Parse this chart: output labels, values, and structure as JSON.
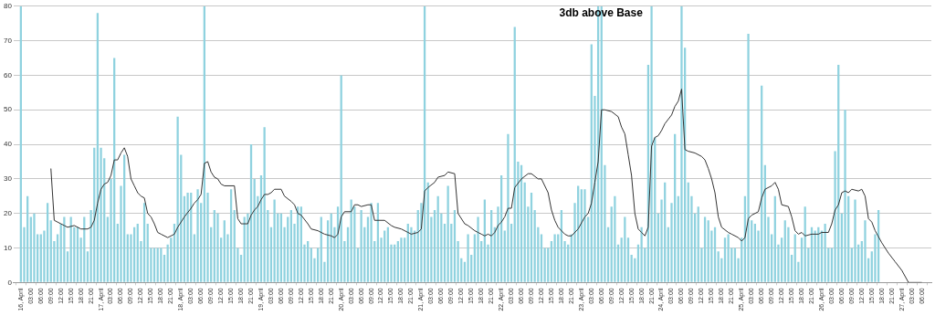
{
  "chart_data": {
    "type": "bar",
    "annotations": [
      "3db above Base"
    ],
    "x": [
      "--04-16T00:00",
      "--04-16T01:00",
      "--04-16T02:00",
      "--04-16T03:00",
      "--04-16T04:00",
      "--04-16T05:00",
      "--04-16T06:00",
      "--04-16T07:00",
      "--04-16T08:00",
      "--04-16T09:00",
      "--04-16T10:00",
      "--04-16T11:00",
      "--04-16T12:00",
      "--04-16T13:00",
      "--04-16T14:00",
      "--04-16T15:00",
      "--04-16T16:00",
      "--04-16T17:00",
      "--04-16T18:00",
      "--04-16T19:00",
      "--04-16T20:00",
      "--04-16T21:00",
      "--04-16T22:00",
      "--04-16T23:00",
      "--04-17T00:00",
      "--04-17T01:00",
      "--04-17T02:00",
      "--04-17T03:00",
      "--04-17T04:00",
      "--04-17T05:00",
      "--04-17T06:00",
      "--04-17T07:00",
      "--04-17T08:00",
      "--04-17T09:00",
      "--04-17T10:00",
      "--04-17T11:00",
      "--04-17T12:00",
      "--04-17T13:00",
      "--04-17T14:00",
      "--04-17T15:00",
      "--04-17T16:00",
      "--04-17T17:00",
      "--04-17T18:00",
      "--04-17T19:00",
      "--04-17T20:00",
      "--04-17T21:00",
      "--04-17T22:00",
      "--04-17T23:00",
      "--04-18T00:00",
      "--04-18T01:00",
      "--04-18T02:00",
      "--04-18T03:00",
      "--04-18T04:00",
      "--04-18T05:00",
      "--04-18T06:00",
      "--04-18T07:00",
      "--04-18T08:00",
      "--04-18T09:00",
      "--04-18T10:00",
      "--04-18T11:00",
      "--04-18T12:00",
      "--04-18T13:00",
      "--04-18T14:00",
      "--04-18T15:00",
      "--04-18T16:00",
      "--04-18T17:00",
      "--04-18T18:00",
      "--04-18T19:00",
      "--04-18T20:00",
      "--04-18T21:00",
      "--04-18T22:00",
      "--04-18T23:00",
      "--04-19T00:00",
      "--04-19T01:00",
      "--04-19T02:00",
      "--04-19T03:00",
      "--04-19T04:00",
      "--04-19T05:00",
      "--04-19T06:00",
      "--04-19T07:00",
      "--04-19T08:00",
      "--04-19T09:00",
      "--04-19T10:00",
      "--04-19T11:00",
      "--04-19T12:00",
      "--04-19T13:00",
      "--04-19T14:00",
      "--04-19T15:00",
      "--04-19T16:00",
      "--04-19T17:00",
      "--04-19T18:00",
      "--04-19T19:00",
      "--04-19T20:00",
      "--04-19T21:00",
      "--04-19T22:00",
      "--04-19T23:00",
      "--04-20T00:00",
      "--04-20T01:00",
      "--04-20T02:00",
      "--04-20T03:00",
      "--04-20T04:00",
      "--04-20T05:00",
      "--04-20T06:00",
      "--04-20T07:00",
      "--04-20T08:00",
      "--04-20T09:00",
      "--04-20T10:00",
      "--04-20T11:00",
      "--04-20T12:00",
      "--04-20T13:00",
      "--04-20T14:00",
      "--04-20T15:00",
      "--04-20T16:00",
      "--04-20T17:00",
      "--04-20T18:00",
      "--04-20T19:00",
      "--04-20T20:00",
      "--04-20T21:00",
      "--04-20T22:00",
      "--04-20T23:00",
      "--04-21T00:00",
      "--04-21T01:00",
      "--04-21T02:00",
      "--04-21T03:00",
      "--04-21T04:00",
      "--04-21T05:00",
      "--04-21T06:00",
      "--04-21T07:00",
      "--04-21T08:00",
      "--04-21T09:00",
      "--04-21T10:00",
      "--04-21T11:00",
      "--04-21T12:00",
      "--04-21T13:00",
      "--04-21T14:00",
      "--04-21T15:00",
      "--04-21T16:00",
      "--04-21T17:00",
      "--04-21T18:00",
      "--04-21T19:00",
      "--04-21T20:00",
      "--04-21T21:00",
      "--04-21T22:00",
      "--04-21T23:00",
      "--04-22T00:00",
      "--04-22T01:00",
      "--04-22T02:00",
      "--04-22T03:00",
      "--04-22T04:00",
      "--04-22T05:00",
      "--04-22T06:00",
      "--04-22T07:00",
      "--04-22T08:00",
      "--04-22T09:00",
      "--04-22T10:00",
      "--04-22T11:00",
      "--04-22T12:00",
      "--04-22T13:00",
      "--04-22T14:00",
      "--04-22T15:00",
      "--04-22T16:00",
      "--04-22T17:00",
      "--04-22T18:00",
      "--04-22T19:00",
      "--04-22T20:00",
      "--04-22T21:00",
      "--04-22T22:00",
      "--04-22T23:00",
      "--04-23T00:00",
      "--04-23T01:00",
      "--04-23T02:00",
      "--04-23T03:00",
      "--04-23T04:00",
      "--04-23T05:00",
      "--04-23T06:00",
      "--04-23T07:00",
      "--04-23T08:00",
      "--04-23T09:00",
      "--04-23T10:00",
      "--04-23T11:00",
      "--04-23T12:00",
      "--04-23T13:00",
      "--04-23T14:00",
      "--04-23T15:00",
      "--04-23T16:00",
      "--04-23T17:00",
      "--04-23T18:00",
      "--04-23T19:00",
      "--04-23T20:00",
      "--04-23T21:00",
      "--04-23T22:00",
      "--04-23T23:00",
      "--04-24T00:00",
      "--04-24T01:00",
      "--04-24T02:00",
      "--04-24T03:00",
      "--04-24T04:00",
      "--04-24T05:00",
      "--04-24T06:00",
      "--04-24T07:00",
      "--04-24T08:00",
      "--04-24T09:00",
      "--04-24T10:00",
      "--04-24T11:00",
      "--04-24T12:00",
      "--04-24T13:00",
      "--04-24T14:00",
      "--04-24T15:00",
      "--04-24T16:00",
      "--04-24T17:00",
      "--04-24T18:00",
      "--04-24T19:00",
      "--04-24T20:00",
      "--04-24T21:00",
      "--04-24T22:00",
      "--04-24T23:00",
      "--04-25T00:00",
      "--04-25T01:00",
      "--04-25T02:00",
      "--04-25T03:00",
      "--04-25T04:00",
      "--04-25T05:00",
      "--04-25T06:00",
      "--04-25T07:00",
      "--04-25T08:00",
      "--04-25T09:00",
      "--04-25T10:00",
      "--04-25T11:00",
      "--04-25T12:00",
      "--04-25T13:00",
      "--04-25T14:00",
      "--04-25T15:00",
      "--04-25T16:00",
      "--04-25T17:00",
      "--04-25T18:00",
      "--04-25T19:00",
      "--04-25T20:00",
      "--04-25T21:00",
      "--04-25T22:00",
      "--04-25T23:00",
      "--04-26T00:00",
      "--04-26T01:00",
      "--04-26T02:00",
      "--04-26T03:00",
      "--04-26T04:00",
      "--04-26T05:00",
      "--04-26T06:00",
      "--04-26T07:00",
      "--04-26T08:00",
      "--04-26T09:00",
      "--04-26T10:00",
      "--04-26T11:00",
      "--04-26T12:00",
      "--04-26T13:00",
      "--04-26T14:00",
      "--04-26T15:00",
      "--04-26T16:00",
      "--04-26T17:00"
    ],
    "series": [
      {
        "color": "#8fd2df",
        "values": [
          80,
          16,
          25,
          19,
          20,
          14,
          14,
          15,
          23,
          18,
          12,
          14,
          17,
          19,
          9,
          19,
          16,
          16,
          13,
          19,
          9,
          21,
          39,
          78,
          39,
          36,
          19,
          30,
          65,
          17,
          28,
          37,
          14,
          14,
          16,
          17,
          12,
          23,
          17,
          10,
          10,
          10,
          10,
          8,
          11,
          13,
          17,
          48,
          37,
          25,
          26,
          26,
          14,
          27,
          23,
          80,
          26,
          16,
          21,
          20,
          13,
          18,
          14,
          27,
          21,
          10,
          8,
          19,
          20,
          40,
          30,
          25,
          31,
          45,
          21,
          16,
          24,
          20,
          20,
          16,
          19,
          21,
          17,
          22,
          22,
          11,
          12,
          10,
          7,
          10,
          19,
          6,
          18,
          20,
          16,
          22,
          60,
          12,
          16,
          24,
          22,
          10,
          21,
          16,
          19,
          23,
          12,
          23,
          13,
          15,
          16,
          11,
          11,
          12,
          13,
          13,
          17,
          16,
          15,
          21,
          23,
          80,
          29,
          19,
          21,
          25,
          20,
          17,
          28,
          17,
          21,
          12,
          7,
          6,
          14,
          8,
          14,
          19,
          12,
          24,
          11,
          21,
          16,
          22,
          31,
          15,
          43,
          17,
          74,
          35,
          34,
          29,
          22,
          26,
          21,
          16,
          14,
          10,
          10,
          12,
          14,
          14,
          21,
          12,
          11,
          14,
          23,
          28,
          27,
          27,
          19,
          69,
          54,
          80,
          80,
          34,
          16,
          22,
          25,
          11,
          13,
          19,
          13,
          8,
          7,
          11,
          16,
          10,
          63,
          80,
          42,
          20,
          24,
          29,
          16,
          23,
          43,
          25,
          80,
          68,
          29,
          25,
          20,
          22,
          10,
          19,
          18,
          15,
          16,
          9,
          7,
          13,
          14,
          10,
          10,
          7,
          13,
          25,
          72,
          18,
          17,
          15,
          57,
          34,
          19,
          14,
          25,
          11,
          13,
          18,
          16,
          8,
          14,
          6,
          13,
          22,
          10,
          16,
          15,
          16,
          15,
          17,
          10,
          10,
          38,
          63,
          20,
          50,
          25,
          10,
          24,
          11,
          12,
          18,
          7,
          9,
          14,
          21
        ]
      },
      {
        "type": "line",
        "color": "#333333",
        "x": [
          "--04-16T09:00",
          "--04-16T10:00",
          "--04-16T11:00",
          "--04-16T12:00",
          "--04-16T13:00",
          "--04-16T14:00",
          "--04-16T16:00",
          "--04-16T17:00",
          "--04-16T18:00",
          "--04-16T20:00",
          "--04-16T21:00",
          "--04-16T22:00",
          "--04-16T23:00",
          "--04-17T00:00",
          "--04-17T01:00",
          "--04-17T02:00",
          "--04-17T03:00",
          "--04-17T04:00",
          "--04-17T05:00",
          "--04-17T06:00",
          "--04-17T07:00",
          "--04-17T08:00",
          "--04-17T09:00",
          "--04-17T10:00",
          "--04-17T11:00",
          "--04-17T12:00",
          "--04-17T13:00",
          "--04-17T14:00",
          "--04-17T15:00",
          "--04-17T16:00",
          "--04-17T17:00",
          "--04-17T18:00",
          "--04-17T19:00",
          "--04-17T20:00",
          "--04-17T22:00",
          "--04-17T23:00",
          "--04-18T01:00",
          "--04-18T03:00",
          "--04-18T04:00",
          "--04-18T05:00",
          "--04-18T06:00",
          "--04-18T07:00",
          "--04-18T08:00",
          "--04-18T09:00",
          "--04-18T10:00",
          "--04-18T11:00",
          "--04-18T12:00",
          "--04-18T13:00",
          "--04-18T16:00",
          "--04-18T17:00",
          "--04-18T18:00",
          "--04-18T20:00",
          "--04-18T21:00",
          "--04-18T22:00",
          "--04-18T23:00",
          "--04-19T00:00",
          "--04-19T01:00",
          "--04-19T02:00",
          "--04-19T03:00",
          "--04-19T04:00",
          "--04-19T06:00",
          "--04-19T07:00",
          "--04-19T09:00",
          "--04-19T10:00",
          "--04-19T11:00",
          "--04-19T12:00",
          "--04-19T14:00",
          "--04-19T15:00",
          "--04-19T17:00",
          "--04-19T19:00",
          "--04-19T21:00",
          "--04-19T22:00",
          "--04-19T23:00",
          "--04-20T00:00",
          "--04-20T01:00",
          "--04-20T03:00",
          "--04-20T04:00",
          "--04-20T05:00",
          "--04-20T06:00",
          "--04-20T08:00",
          "--04-20T09:00",
          "--04-20T10:00",
          "--04-20T13:00",
          "--04-20T15:00",
          "--04-20T16:00",
          "--04-20T18:00",
          "--04-20T20:00",
          "--04-20T21:00",
          "--04-20T23:00",
          "--04-21T00:00",
          "--04-21T01:00",
          "--04-21T02:00",
          "--04-21T04:00",
          "--04-21T05:00",
          "--04-21T07:00",
          "--04-21T08:00",
          "--04-21T10:00",
          "--04-21T11:00",
          "--04-21T13:00",
          "--04-21T14:00",
          "--04-21T16:00",
          "--04-21T17:00",
          "--04-21T18:00",
          "--04-21T19:00",
          "--04-21T20:00",
          "--04-21T21:00",
          "--04-21T22:00",
          "--04-21T23:00",
          "--04-22T00:00",
          "--04-22T01:00",
          "--04-22T02:00",
          "--04-22T03:00",
          "--04-22T04:00",
          "--04-22T06:00",
          "--04-22T08:00",
          "--04-22T09:00",
          "--04-22T11:00",
          "--04-22T12:00",
          "--04-22T14:00",
          "--04-22T15:00",
          "--04-22T16:00",
          "--04-22T17:00",
          "--04-22T19:00",
          "--04-22T20:00",
          "--04-22T21:00",
          "--04-22T23:00",
          "--04-23T01:00",
          "--04-23T02:00",
          "--04-23T03:00",
          "--04-23T04:00",
          "--04-23T05:00",
          "--04-23T06:00",
          "--04-23T07:00",
          "--04-23T09:00",
          "--04-23T11:00",
          "--04-23T12:00",
          "--04-23T13:00",
          "--04-23T14:00",
          "--04-23T15:00",
          "--04-23T16:00",
          "--04-23T17:00",
          "--04-23T18:00",
          "--04-23T19:00",
          "--04-23T20:00",
          "--04-23T21:00",
          "--04-23T22:00",
          "--04-23T23:00",
          "--04-24T00:00",
          "--04-24T01:00",
          "--04-24T03:00",
          "--04-24T04:00",
          "--04-24T05:00",
          "--04-24T06:00",
          "--04-24T07:00",
          "--04-24T08:00",
          "--04-24T10:00",
          "--04-24T12:00",
          "--04-24T13:00",
          "--04-24T14:00",
          "--04-24T15:00",
          "--04-24T16:00",
          "--04-24T17:00",
          "--04-24T18:00",
          "--04-24T20:00",
          "--04-24T21:00",
          "--04-24T23:00",
          "--04-25T00:00",
          "--04-25T01:00",
          "--04-25T02:00",
          "--04-25T03:00",
          "--04-25T05:00",
          "--04-25T06:00",
          "--04-25T07:00",
          "--04-25T09:00",
          "--04-25T10:00",
          "--04-25T11:00",
          "--04-25T12:00",
          "--04-25T14:00",
          "--04-25T15:00",
          "--04-25T16:00",
          "--04-25T17:00",
          "--04-25T18:00",
          "--04-25T19:00",
          "--04-25T21:00",
          "--04-25T23:00",
          "--04-26T00:00",
          "--04-26T02:00",
          "--04-26T03:00",
          "--04-26T04:00",
          "--04-26T05:00",
          "--04-26T06:00",
          "--04-26T07:00",
          "--04-26T08:00",
          "--04-26T09:00",
          "--04-26T11:00",
          "--04-26T12:00",
          "--04-26T13:00",
          "--04-26T14:00",
          "--04-26T15:00",
          "--04-26T16:00",
          "--04-26T18:00",
          "--04-26T20:00",
          "--04-26T22:00",
          "--04-27T00:00",
          "--04-27T02:00",
          "--04-27T06:00"
        ],
        "values": [
          33,
          18,
          17.5,
          17,
          16.5,
          16,
          16.5,
          16,
          15.5,
          15.5,
          16,
          18,
          23,
          27,
          28.5,
          29,
          31,
          35.5,
          35.5,
          37.5,
          39,
          36.5,
          30,
          28,
          26,
          25,
          24.5,
          20,
          19,
          17,
          14.5,
          14,
          13.5,
          13,
          14,
          16,
          19,
          21.5,
          23,
          24,
          25.5,
          34.5,
          35,
          32,
          30.5,
          30,
          28.5,
          28,
          28,
          18.5,
          17,
          17,
          19.5,
          21,
          22,
          24,
          25.5,
          25.5,
          26,
          27,
          27,
          25,
          23.5,
          22.5,
          20,
          19.5,
          17,
          15.5,
          15,
          14,
          13.5,
          13,
          14,
          19,
          20.5,
          20.5,
          22.5,
          22.5,
          22,
          22.5,
          22.5,
          18,
          18,
          16.5,
          16,
          15.5,
          14.5,
          14,
          14.5,
          15.5,
          26.5,
          27.5,
          29,
          30.5,
          31,
          32,
          31.5,
          20,
          17,
          16.5,
          15,
          14.5,
          14,
          13.5,
          14,
          13.5,
          14.5,
          16.5,
          17.5,
          19,
          21.5,
          21.5,
          27.5,
          30,
          31.5,
          31.5,
          30,
          30,
          26,
          21,
          18,
          16,
          14,
          13.5,
          13.5,
          15.5,
          19,
          20,
          23,
          29,
          35,
          50,
          50,
          49.5,
          48,
          45,
          43,
          37,
          31,
          20,
          15.5,
          14.5,
          13.5,
          16,
          39.5,
          42,
          42.5,
          44,
          46,
          48.5,
          51,
          52.5,
          56,
          38.5,
          38,
          37.5,
          36.5,
          35.5,
          33,
          30,
          26,
          19,
          16,
          14.5,
          14,
          13,
          12,
          13,
          18.5,
          19.5,
          20.5,
          24.5,
          27,
          28,
          29,
          27,
          22.5,
          22,
          19,
          15,
          14,
          14.5,
          13.5,
          14,
          14,
          14.5,
          14.5,
          17,
          21,
          22.5,
          26,
          26.5,
          26,
          27,
          26.5,
          27,
          25,
          18.5,
          17.5,
          15,
          11.5,
          8.5,
          6,
          3.5,
          0,
          0
        ]
      }
    ],
    "xlim": [
      "--04-15T23:20",
      "--04-27T07:20"
    ],
    "xticks": [
      {
        "value": "--04-16T00:00",
        "label": "16, April"
      },
      {
        "value": "--04-16T03:00",
        "label": "03:00"
      },
      {
        "value": "--04-16T06:00",
        "label": "06:00"
      },
      {
        "value": "--04-16T09:00",
        "label": "09:00"
      },
      {
        "value": "--04-16T12:00",
        "label": "12:00"
      },
      {
        "value": "--04-16T15:00",
        "label": "15:00"
      },
      {
        "value": "--04-16T18:00",
        "label": "18:00"
      },
      {
        "value": "--04-16T21:00",
        "label": "21:00"
      },
      {
        "value": "--04-17T00:00",
        "label": "17, April"
      },
      {
        "value": "--04-17T03:00",
        "label": "03:00"
      },
      {
        "value": "--04-17T06:00",
        "label": "06:00"
      },
      {
        "value": "--04-17T09:00",
        "label": "09:00"
      },
      {
        "value": "--04-17T12:00",
        "label": "12:00"
      },
      {
        "value": "--04-17T15:00",
        "label": "15:00"
      },
      {
        "value": "--04-17T18:00",
        "label": "18:00"
      },
      {
        "value": "--04-17T21:00",
        "label": "21:00"
      },
      {
        "value": "--04-18T00:00",
        "label": "18, April"
      },
      {
        "value": "--04-18T03:00",
        "label": "03:00"
      },
      {
        "value": "--04-18T06:00",
        "label": "06:00"
      },
      {
        "value": "--04-18T09:00",
        "label": "09:00"
      },
      {
        "value": "--04-18T12:00",
        "label": "12:00"
      },
      {
        "value": "--04-18T15:00",
        "label": "15:00"
      },
      {
        "value": "--04-18T18:00",
        "label": "18:00"
      },
      {
        "value": "--04-18T21:00",
        "label": "21:00"
      },
      {
        "value": "--04-19T00:00",
        "label": "19, April"
      },
      {
        "value": "--04-19T03:00",
        "label": "03:00"
      },
      {
        "value": "--04-19T06:00",
        "label": "06:00"
      },
      {
        "value": "--04-19T09:00",
        "label": "09:00"
      },
      {
        "value": "--04-19T12:00",
        "label": "12:00"
      },
      {
        "value": "--04-19T15:00",
        "label": "15:00"
      },
      {
        "value": "--04-19T18:00",
        "label": "18:00"
      },
      {
        "value": "--04-19T21:00",
        "label": "21:00"
      },
      {
        "value": "--04-20T00:00",
        "label": "20, April"
      },
      {
        "value": "--04-20T03:00",
        "label": "03:00"
      },
      {
        "value": "--04-20T06:00",
        "label": "06:00"
      },
      {
        "value": "--04-20T09:00",
        "label": "09:00"
      },
      {
        "value": "--04-20T12:00",
        "label": "12:00"
      },
      {
        "value": "--04-20T15:00",
        "label": "15:00"
      },
      {
        "value": "--04-20T18:00",
        "label": "18:00"
      },
      {
        "value": "--04-20T21:00",
        "label": "21:00"
      },
      {
        "value": "--04-21T00:00",
        "label": "21, April"
      },
      {
        "value": "--04-21T03:00",
        "label": "03:00"
      },
      {
        "value": "--04-21T06:00",
        "label": "06:00"
      },
      {
        "value": "--04-21T09:00",
        "label": "09:00"
      },
      {
        "value": "--04-21T12:00",
        "label": "12:00"
      },
      {
        "value": "--04-21T15:00",
        "label": "15:00"
      },
      {
        "value": "--04-21T18:00",
        "label": "18:00"
      },
      {
        "value": "--04-21T21:00",
        "label": "21:00"
      },
      {
        "value": "--04-22T00:00",
        "label": "22, April"
      },
      {
        "value": "--04-22T03:00",
        "label": "03:00"
      },
      {
        "value": "--04-22T06:00",
        "label": "06:00"
      },
      {
        "value": "--04-22T09:00",
        "label": "09:00"
      },
      {
        "value": "--04-22T12:00",
        "label": "12:00"
      },
      {
        "value": "--04-22T15:00",
        "label": "15:00"
      },
      {
        "value": "--04-22T18:00",
        "label": "18:00"
      },
      {
        "value": "--04-22T21:00",
        "label": "21:00"
      },
      {
        "value": "--04-23T00:00",
        "label": "23, April"
      },
      {
        "value": "--04-23T03:00",
        "label": "03:00"
      },
      {
        "value": "--04-23T06:00",
        "label": "06:00"
      },
      {
        "value": "--04-23T09:00",
        "label": "09:00"
      },
      {
        "value": "--04-23T12:00",
        "label": "12:00"
      },
      {
        "value": "--04-23T15:00",
        "label": "15:00"
      },
      {
        "value": "--04-23T18:00",
        "label": "18:00"
      },
      {
        "value": "--04-23T21:00",
        "label": "21:00"
      },
      {
        "value": "--04-24T00:00",
        "label": "24, April"
      },
      {
        "value": "--04-24T03:00",
        "label": "03:00"
      },
      {
        "value": "--04-24T06:00",
        "label": "06:00"
      },
      {
        "value": "--04-24T09:00",
        "label": "09:00"
      },
      {
        "value": "--04-24T12:00",
        "label": "12:00"
      },
      {
        "value": "--04-24T15:00",
        "label": "15:00"
      },
      {
        "value": "--04-24T18:00",
        "label": "18:00"
      },
      {
        "value": "--04-24T21:00",
        "label": "21:00"
      },
      {
        "value": "--04-25T00:00",
        "label": "25, April"
      },
      {
        "value": "--04-25T03:00",
        "label": "03:00"
      },
      {
        "value": "--04-25T06:00",
        "label": "06:00"
      },
      {
        "value": "--04-25T09:00",
        "label": "09:00"
      },
      {
        "value": "--04-25T12:00",
        "label": "12:00"
      },
      {
        "value": "--04-25T15:00",
        "label": "15:00"
      },
      {
        "value": "--04-25T18:00",
        "label": "18:00"
      },
      {
        "value": "--04-25T21:00",
        "label": "21:00"
      },
      {
        "value": "--04-26T00:00",
        "label": "26, April"
      },
      {
        "value": "--04-26T03:00",
        "label": "03:00"
      },
      {
        "value": "--04-26T06:00",
        "label": "06:00"
      },
      {
        "value": "--04-26T09:00",
        "label": "09:00"
      },
      {
        "value": "--04-26T12:00",
        "label": "12:00"
      },
      {
        "value": "--04-26T15:00",
        "label": "15:00"
      },
      {
        "value": "--04-26T18:00",
        "label": "18:00"
      },
      {
        "value": "--04-26T21:00",
        "label": "21:00"
      },
      {
        "value": "--04-27T00:00",
        "label": "27, April"
      },
      {
        "value": "--04-27T03:00",
        "label": "03:00"
      },
      {
        "value": "--04-27T06:00",
        "label": "06:00"
      }
    ],
    "ylim": [
      0,
      80
    ],
    "yticks": [
      0,
      10,
      20,
      30,
      40,
      50,
      60,
      70,
      80
    ],
    "grid": "y",
    "legend": false,
    "marker": "none",
    "line_style": "solid"
  }
}
